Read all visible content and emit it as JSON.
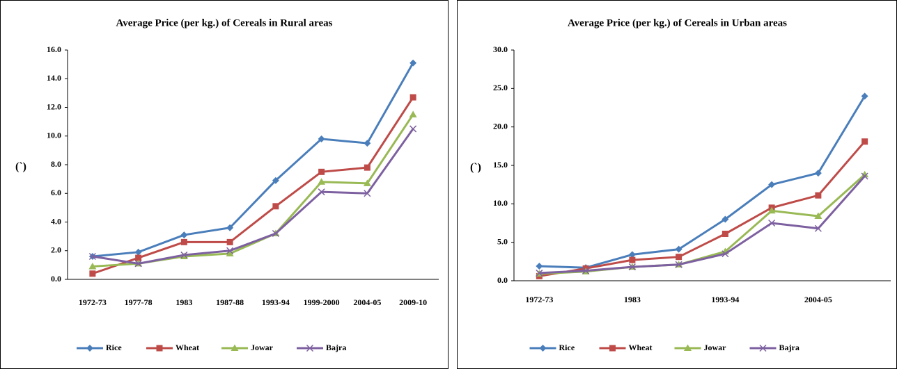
{
  "chart_data": [
    {
      "type": "line",
      "title": "Average Price (per kg.) of Cereals in Rural areas",
      "ylabel": "(`)",
      "categories": [
        "1972-73",
        "1977-78",
        "1983",
        "1987-88",
        "1993-94",
        "1999-2000",
        "2004-05",
        "2009-10"
      ],
      "series": [
        {
          "name": "Rice",
          "color": "#4a7ebb",
          "marker": "diamond",
          "values": [
            1.6,
            1.9,
            3.1,
            3.6,
            6.9,
            9.8,
            9.5,
            15.1
          ]
        },
        {
          "name": "Wheat",
          "color": "#be4b48",
          "marker": "square",
          "values": [
            0.4,
            1.5,
            2.6,
            2.6,
            5.1,
            7.5,
            7.8,
            12.7
          ]
        },
        {
          "name": "Jowar",
          "color": "#98b954",
          "marker": "triangle",
          "values": [
            0.9,
            1.1,
            1.6,
            1.8,
            3.2,
            6.8,
            6.7,
            11.5
          ]
        },
        {
          "name": "Bajra",
          "color": "#7d60a0",
          "marker": "x",
          "values": [
            1.6,
            1.1,
            1.7,
            2.0,
            3.2,
            6.1,
            6.0,
            10.5
          ]
        }
      ],
      "ylim": [
        0,
        16
      ],
      "yticks": [
        {
          "value": 0,
          "label": "0.0"
        },
        {
          "value": 2,
          "label": "2.0"
        },
        {
          "value": 4,
          "label": "4.0"
        },
        {
          "value": 6,
          "label": "6.0"
        },
        {
          "value": 8,
          "label": "8.0"
        },
        {
          "value": 10,
          "label": "10.0"
        },
        {
          "value": 12,
          "label": "12.0"
        },
        {
          "value": 14,
          "label": "14.0"
        },
        {
          "value": 16,
          "label": "16.0"
        }
      ],
      "legend": "bottom"
    },
    {
      "type": "line",
      "title": "Average Price (per kg.) of Cereals in Urban areas",
      "ylabel": "(`)",
      "categories": [
        "1972-73",
        null,
        "1983",
        null,
        "1993-94",
        null,
        "2004-05",
        null
      ],
      "series": [
        {
          "name": "Rice",
          "color": "#4a7ebb",
          "marker": "diamond",
          "values": [
            1.9,
            1.7,
            3.4,
            4.1,
            8.0,
            12.5,
            14.0,
            24.0
          ]
        },
        {
          "name": "Wheat",
          "color": "#be4b48",
          "marker": "square",
          "values": [
            0.6,
            1.6,
            2.7,
            3.1,
            6.1,
            9.5,
            11.1,
            18.1
          ]
        },
        {
          "name": "Jowar",
          "color": "#98b954",
          "marker": "triangle",
          "values": [
            0.9,
            1.2,
            1.8,
            2.1,
            3.8,
            9.1,
            8.4,
            13.8
          ]
        },
        {
          "name": "Bajra",
          "color": "#7d60a0",
          "marker": "x",
          "values": [
            1.0,
            1.3,
            1.8,
            2.1,
            3.5,
            7.5,
            6.8,
            13.6
          ]
        }
      ],
      "ylim": [
        0,
        30
      ],
      "yticks": [
        {
          "value": 0,
          "label": "0.0"
        },
        {
          "value": 5,
          "label": "5.0"
        },
        {
          "value": 10,
          "label": "10.0"
        },
        {
          "value": 15,
          "label": "15.0"
        },
        {
          "value": 20,
          "label": "20.0"
        },
        {
          "value": 25,
          "label": "25.0"
        },
        {
          "value": 30,
          "label": "30.0"
        }
      ],
      "legend": "bottom"
    }
  ]
}
